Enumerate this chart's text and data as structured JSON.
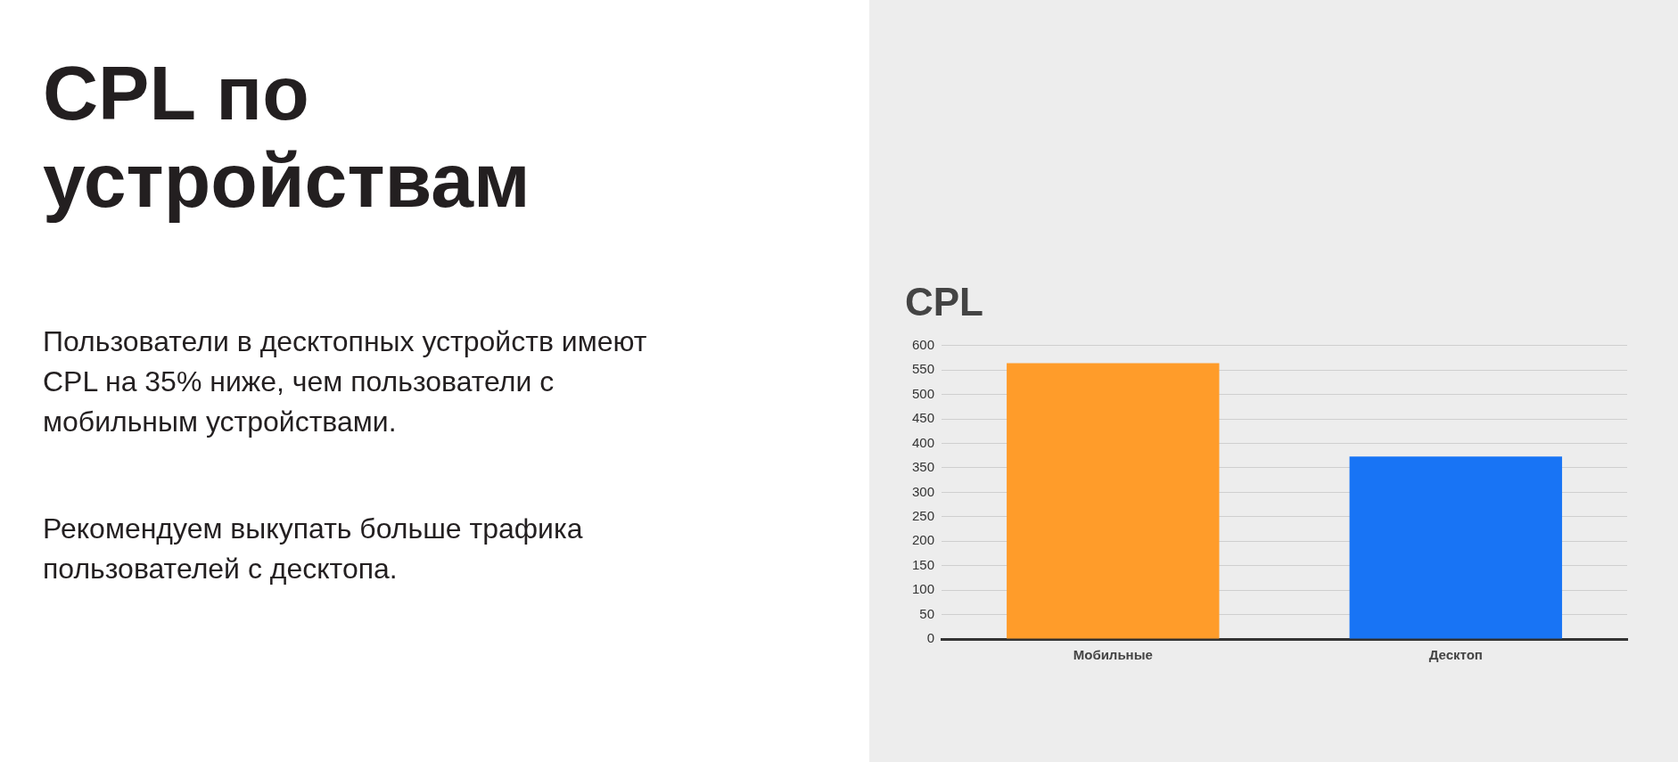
{
  "chart_data": {
    "type": "bar",
    "title": "CPL по устройствам",
    "subtitle": "CPL",
    "annotations": [
      "Пользователи в десктопных устройств имеют CPL на 35% ниже, чем пользователи с мобильным устройствами.",
      "Рекомендуем выкупать больше трафика пользователей с десктопа."
    ],
    "categories": [
      "Мобильные",
      "Десктоп"
    ],
    "values": [
      564,
      373
    ],
    "colors": [
      "#ff9c2a",
      "#1874f5"
    ],
    "ylim": [
      0,
      600
    ],
    "yticks": [
      0,
      50,
      100,
      150,
      200,
      250,
      300,
      350,
      400,
      450,
      500,
      550,
      600
    ],
    "grid": "y",
    "legend": false
  }
}
